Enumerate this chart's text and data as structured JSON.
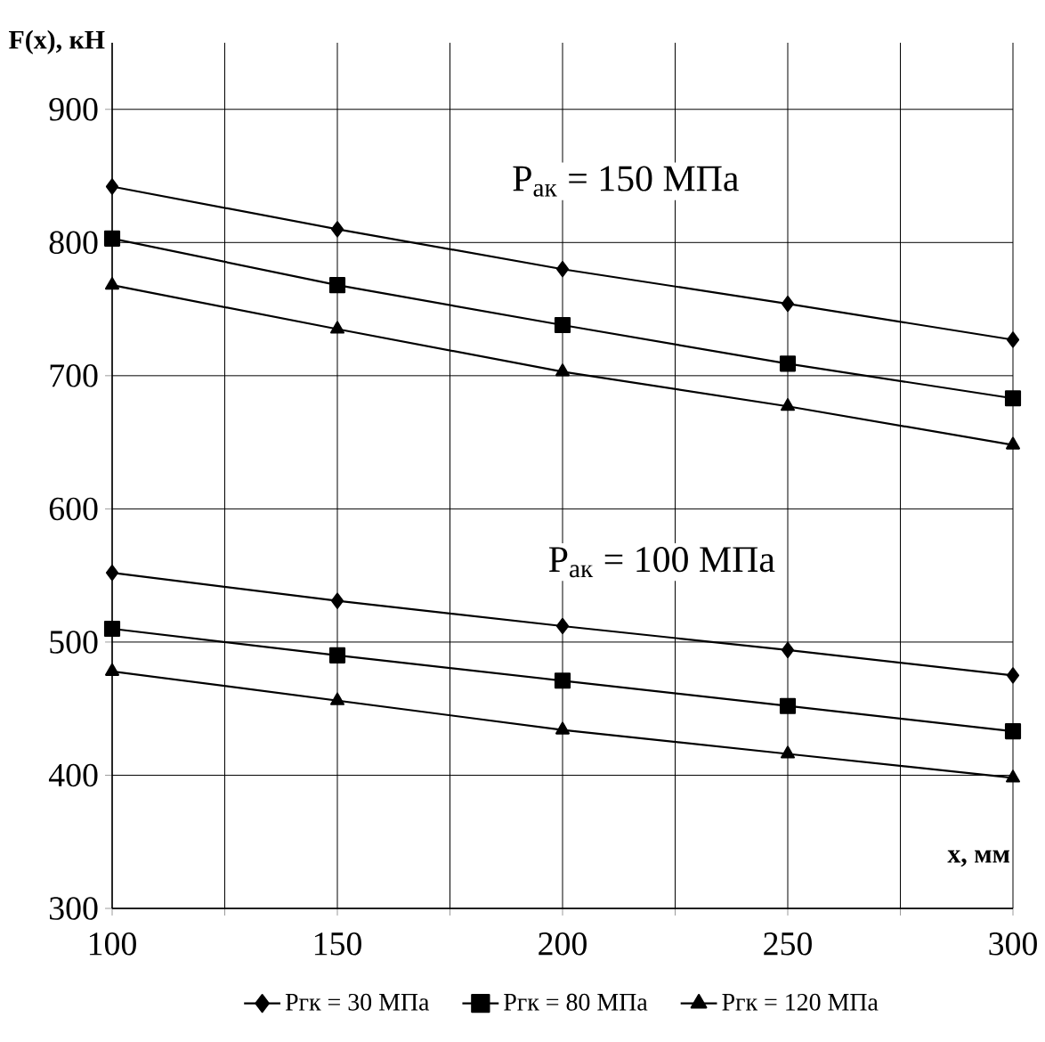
{
  "chart_data": {
    "type": "line",
    "xlabel": "x, мм",
    "ylabel": "F(x), кН",
    "x": [
      100,
      150,
      200,
      250,
      300
    ],
    "xlim": [
      100,
      300
    ],
    "ylim": [
      300,
      950
    ],
    "xticks": [
      100,
      {
        "value": 125,
        "label": null
      },
      150,
      {
        "value": 175,
        "label": null
      },
      200,
      {
        "value": 225,
        "label": null
      },
      250,
      {
        "value": 275,
        "label": null
      },
      300
    ],
    "yticks": [
      300,
      400,
      500,
      600,
      700,
      800,
      900
    ],
    "grid": true,
    "legend": "bottom",
    "line_style": "solid",
    "series": [
      {
        "name": "Pгк = 30 МПа",
        "color": "#000000",
        "marker": "diamond",
        "values": [
          842,
          810,
          780,
          754,
          727
        ]
      },
      {
        "name": "Pгк = 80 МПа",
        "color": "#000000",
        "marker": "square",
        "values": [
          803,
          768,
          738,
          709,
          683
        ]
      },
      {
        "name": "Pгк = 120 МПа",
        "color": "#000000",
        "marker": "triangle",
        "values": [
          768,
          735,
          703,
          677,
          648
        ]
      },
      {
        "color": "#000000",
        "marker": "diamond",
        "values": [
          552,
          531,
          512,
          494,
          475
        ]
      },
      {
        "color": "#000000",
        "marker": "square",
        "values": [
          510,
          490,
          471,
          452,
          433
        ]
      },
      {
        "color": "#000000",
        "marker": "triangle",
        "values": [
          478,
          456,
          434,
          416,
          398
        ]
      }
    ],
    "annotations": [
      "P$_{ак}$ = 150 МПа",
      "P$_{ак}$ = 100 МПа"
    ]
  }
}
